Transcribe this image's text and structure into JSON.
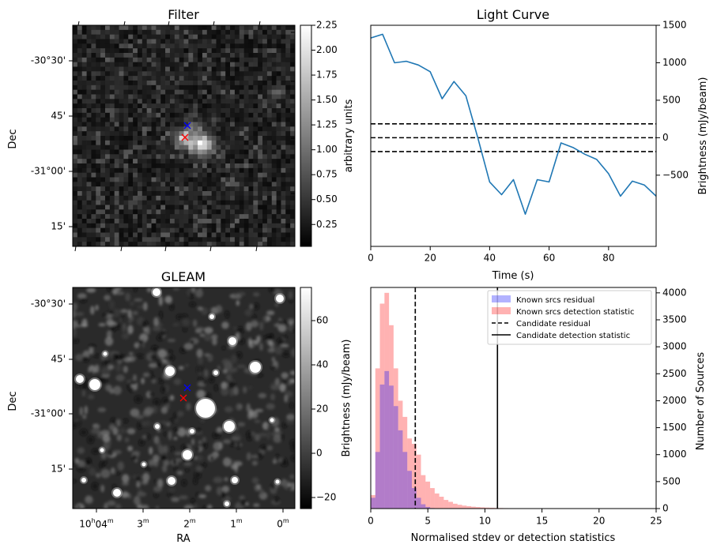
{
  "chart_data": [
    {
      "type": "heatmap",
      "title": "Filter",
      "ylabel": "Dec",
      "yticks": [
        "-30°30'",
        "45'",
        "-31°00'",
        "15'"
      ],
      "colormap": "gray",
      "colorbar": {
        "label": "arbitrary units",
        "ticks": [
          0.25,
          0.5,
          0.75,
          1.0,
          1.25,
          1.5,
          1.75,
          2.0,
          2.25
        ],
        "tick_labels": [
          "0.25",
          "0.50",
          "0.75",
          "1.00",
          "1.25",
          "1.50",
          "1.75",
          "2.00",
          "2.25"
        ],
        "range": [
          0.03,
          2.25
        ]
      },
      "markers": [
        {
          "symbol": "x",
          "color": "#0000ff",
          "note": "candidate"
        },
        {
          "symbol": "x",
          "color": "#ff0000",
          "note": "known"
        }
      ]
    },
    {
      "type": "line",
      "title": "Light Curve",
      "xlabel": "Time (s)",
      "ylabel": "Brightness (mJy/beam)",
      "xlim": [
        0,
        96
      ],
      "ylim": [
        -1450,
        1500
      ],
      "xticks": [
        0,
        20,
        40,
        60,
        80
      ],
      "yticks": [
        -500,
        0,
        500,
        1000,
        1500
      ],
      "y_axis_side": "right",
      "series": [
        {
          "color": "#1f77b4",
          "x": [
            0,
            4,
            8,
            12,
            16,
            20,
            24,
            28,
            32,
            36,
            40,
            44,
            48,
            52,
            56,
            60,
            64,
            68,
            72,
            76,
            80,
            84,
            88,
            92,
            96
          ],
          "y": [
            1330,
            1380,
            1000,
            1020,
            970,
            880,
            520,
            750,
            560,
            0,
            -590,
            -760,
            -560,
            -1020,
            -560,
            -590,
            -70,
            -130,
            -220,
            -290,
            -480,
            -780,
            -580,
            -630,
            -780
          ]
        }
      ],
      "hlines": [
        {
          "y": 185,
          "style": "dashed",
          "color": "#000000"
        },
        {
          "y": 0,
          "style": "dashed",
          "color": "#000000"
        },
        {
          "y": -185,
          "style": "dashed",
          "color": "#000000"
        }
      ]
    },
    {
      "type": "heatmap",
      "title": "GLEAM",
      "xlabel": "RA",
      "ylabel": "Dec",
      "xticks": [
        "10h04m",
        "03m",
        "02m",
        "01m",
        "00m"
      ],
      "yticks": [
        "-30°30'",
        "45'",
        "-31°00'",
        "15'"
      ],
      "colormap": "gray",
      "colorbar": {
        "label": "Brightness (mJy/beam)",
        "ticks": [
          -20,
          0,
          20,
          40,
          60
        ],
        "tick_labels": [
          "−20",
          "0",
          "20",
          "40",
          "60"
        ],
        "range": [
          -25,
          75
        ]
      },
      "markers": [
        {
          "symbol": "x",
          "color": "#0000ff",
          "note": "candidate"
        },
        {
          "symbol": "x",
          "color": "#ff0000",
          "note": "known"
        }
      ]
    },
    {
      "type": "bar",
      "subtype": "histogram",
      "xlabel": "Normalised stdev or detection statistics",
      "ylabel": "Number of Sources",
      "xlim": [
        0,
        25
      ],
      "ylim": [
        0,
        4100
      ],
      "xticks": [
        0,
        5,
        10,
        15,
        20,
        25
      ],
      "yticks": [
        0,
        500,
        1000,
        1500,
        2000,
        2500,
        3000,
        3500,
        4000
      ],
      "bin_width": 0.4,
      "legend_position": "top-right",
      "series": [
        {
          "name": "Known srcs residual",
          "color": "#0000ff",
          "alpha": 0.3,
          "values": [
            200,
            1050,
            2300,
            2550,
            2280,
            1900,
            1450,
            1050,
            700,
            380,
            200,
            80,
            30,
            10,
            0,
            0,
            0,
            0,
            0,
            0
          ]
        },
        {
          "name": "Known srcs detection statistic",
          "color": "#ff0000",
          "alpha": 0.3,
          "values": [
            250,
            2600,
            3800,
            4000,
            3400,
            2600,
            2000,
            1700,
            1300,
            1200,
            1000,
            620,
            500,
            380,
            280,
            220,
            160,
            125,
            90,
            70,
            55,
            45,
            35,
            28,
            22,
            18,
            15,
            12,
            10,
            8,
            7,
            6,
            5,
            4,
            4,
            3,
            3,
            2,
            2,
            2
          ]
        }
      ],
      "vlines": [
        {
          "name": "Candidate residual",
          "x": 3.9,
          "style": "dashed",
          "color": "#000000"
        },
        {
          "name": "Candidate detection statistic",
          "x": 11.1,
          "style": "solid",
          "color": "#000000"
        }
      ]
    }
  ]
}
